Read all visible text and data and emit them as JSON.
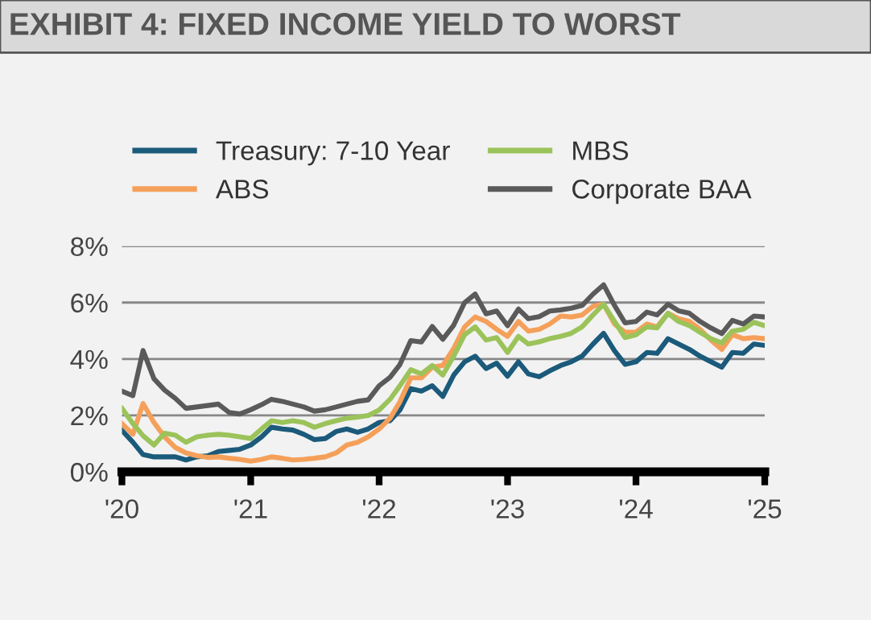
{
  "chart_data": {
    "type": "line",
    "title": "EXHIBIT 4: FIXED INCOME YIELD TO WORST",
    "x": [
      "2020-01",
      "2020-02",
      "2020-03",
      "2020-04",
      "2020-05",
      "2020-06",
      "2020-07",
      "2020-08",
      "2020-09",
      "2020-10",
      "2020-11",
      "2020-12",
      "2021-01",
      "2021-02",
      "2021-03",
      "2021-04",
      "2021-05",
      "2021-06",
      "2021-07",
      "2021-08",
      "2021-09",
      "2021-10",
      "2021-11",
      "2021-12",
      "2022-01",
      "2022-02",
      "2022-03",
      "2022-04",
      "2022-05",
      "2022-06",
      "2022-07",
      "2022-08",
      "2022-09",
      "2022-10",
      "2022-11",
      "2022-12",
      "2023-01",
      "2023-02",
      "2023-03",
      "2023-04",
      "2023-05",
      "2023-06",
      "2023-07",
      "2023-08",
      "2023-09",
      "2023-10",
      "2023-11",
      "2023-12",
      "2024-01",
      "2024-02",
      "2024-03",
      "2024-04",
      "2024-05",
      "2024-06",
      "2024-07",
      "2024-08",
      "2024-09",
      "2024-10",
      "2024-11",
      "2024-12",
      "2025-01"
    ],
    "series": [
      {
        "name": "Treasury: 7-10 Year",
        "color": "#1b5a7a",
        "values": [
          1.47,
          1.05,
          0.61,
          0.53,
          0.53,
          0.53,
          0.42,
          0.53,
          0.57,
          0.72,
          0.76,
          0.8,
          0.95,
          1.24,
          1.58,
          1.52,
          1.48,
          1.33,
          1.14,
          1.18,
          1.43,
          1.52,
          1.4,
          1.52,
          1.75,
          1.81,
          2.19,
          2.95,
          2.86,
          3.05,
          2.67,
          3.43,
          3.9,
          4.1,
          3.66,
          3.85,
          3.39,
          3.9,
          3.47,
          3.37,
          3.58,
          3.77,
          3.9,
          4.1,
          4.53,
          4.91,
          4.29,
          3.81,
          3.9,
          4.23,
          4.2,
          4.72,
          4.53,
          4.34,
          4.1,
          3.9,
          3.71,
          4.23,
          4.2,
          4.53,
          4.48
        ]
      },
      {
        "name": "ABS",
        "color": "#f5a05a",
        "values": [
          1.71,
          1.33,
          2.42,
          1.75,
          1.24,
          0.86,
          0.67,
          0.57,
          0.51,
          0.53,
          0.48,
          0.44,
          0.38,
          0.44,
          0.53,
          0.48,
          0.42,
          0.44,
          0.48,
          0.53,
          0.67,
          0.95,
          1.05,
          1.24,
          1.52,
          1.9,
          2.48,
          3.33,
          3.33,
          3.71,
          3.77,
          4.38,
          5.14,
          5.49,
          5.33,
          5.05,
          4.8,
          5.33,
          4.99,
          5.05,
          5.24,
          5.52,
          5.49,
          5.56,
          5.87,
          5.94,
          5.24,
          4.95,
          4.95,
          5.24,
          5.14,
          5.62,
          5.43,
          5.33,
          5.05,
          4.67,
          4.34,
          4.86,
          4.72,
          4.76,
          4.72
        ]
      },
      {
        "name": "MBS",
        "color": "#9bc35a",
        "values": [
          2.25,
          1.71,
          1.28,
          0.95,
          1.37,
          1.3,
          1.05,
          1.24,
          1.3,
          1.33,
          1.3,
          1.24,
          1.18,
          1.52,
          1.81,
          1.75,
          1.81,
          1.75,
          1.58,
          1.71,
          1.81,
          1.9,
          1.94,
          2.0,
          2.19,
          2.57,
          3.05,
          3.62,
          3.47,
          3.77,
          3.43,
          4.1,
          4.86,
          5.14,
          4.67,
          4.76,
          4.23,
          4.8,
          4.53,
          4.61,
          4.72,
          4.8,
          4.91,
          5.14,
          5.56,
          5.94,
          5.33,
          4.76,
          4.86,
          5.14,
          5.1,
          5.62,
          5.33,
          5.18,
          4.95,
          4.72,
          4.57,
          4.99,
          5.05,
          5.3,
          5.18
        ]
      },
      {
        "name": "Corporate BAA",
        "color": "#5a5a5a",
        "values": [
          2.86,
          2.7,
          4.3,
          3.3,
          2.9,
          2.6,
          2.25,
          2.3,
          2.35,
          2.4,
          2.1,
          2.05,
          2.2,
          2.38,
          2.57,
          2.5,
          2.4,
          2.3,
          2.15,
          2.2,
          2.3,
          2.4,
          2.5,
          2.55,
          3.05,
          3.35,
          3.8,
          4.65,
          4.6,
          5.15,
          4.7,
          5.2,
          6.0,
          6.3,
          5.6,
          5.7,
          5.18,
          5.77,
          5.43,
          5.5,
          5.7,
          5.74,
          5.8,
          5.9,
          6.3,
          6.63,
          5.9,
          5.28,
          5.33,
          5.66,
          5.56,
          5.94,
          5.71,
          5.62,
          5.33,
          5.1,
          4.9,
          5.37,
          5.24,
          5.52,
          5.49
        ]
      }
    ],
    "xlim": [
      "2020-01",
      "2025-01"
    ],
    "xticks": [
      {
        "value": "2020-01",
        "label": "'20"
      },
      {
        "value": "2021-01",
        "label": "'21"
      },
      {
        "value": "2022-01",
        "label": "'22"
      },
      {
        "value": "2023-01",
        "label": "'23"
      },
      {
        "value": "2024-01",
        "label": "'24"
      },
      {
        "value": "2025-01",
        "label": "'25"
      }
    ],
    "ylim": [
      0,
      8
    ],
    "yticks": [
      {
        "value": 0,
        "label": "0%"
      },
      {
        "value": 2,
        "label": "2%"
      },
      {
        "value": 4,
        "label": "4%"
      },
      {
        "value": 6,
        "label": "6%"
      },
      {
        "value": 8,
        "label": "8%"
      }
    ],
    "grid": "y",
    "legend": "top",
    "marker": "none",
    "line_style": "solid"
  }
}
